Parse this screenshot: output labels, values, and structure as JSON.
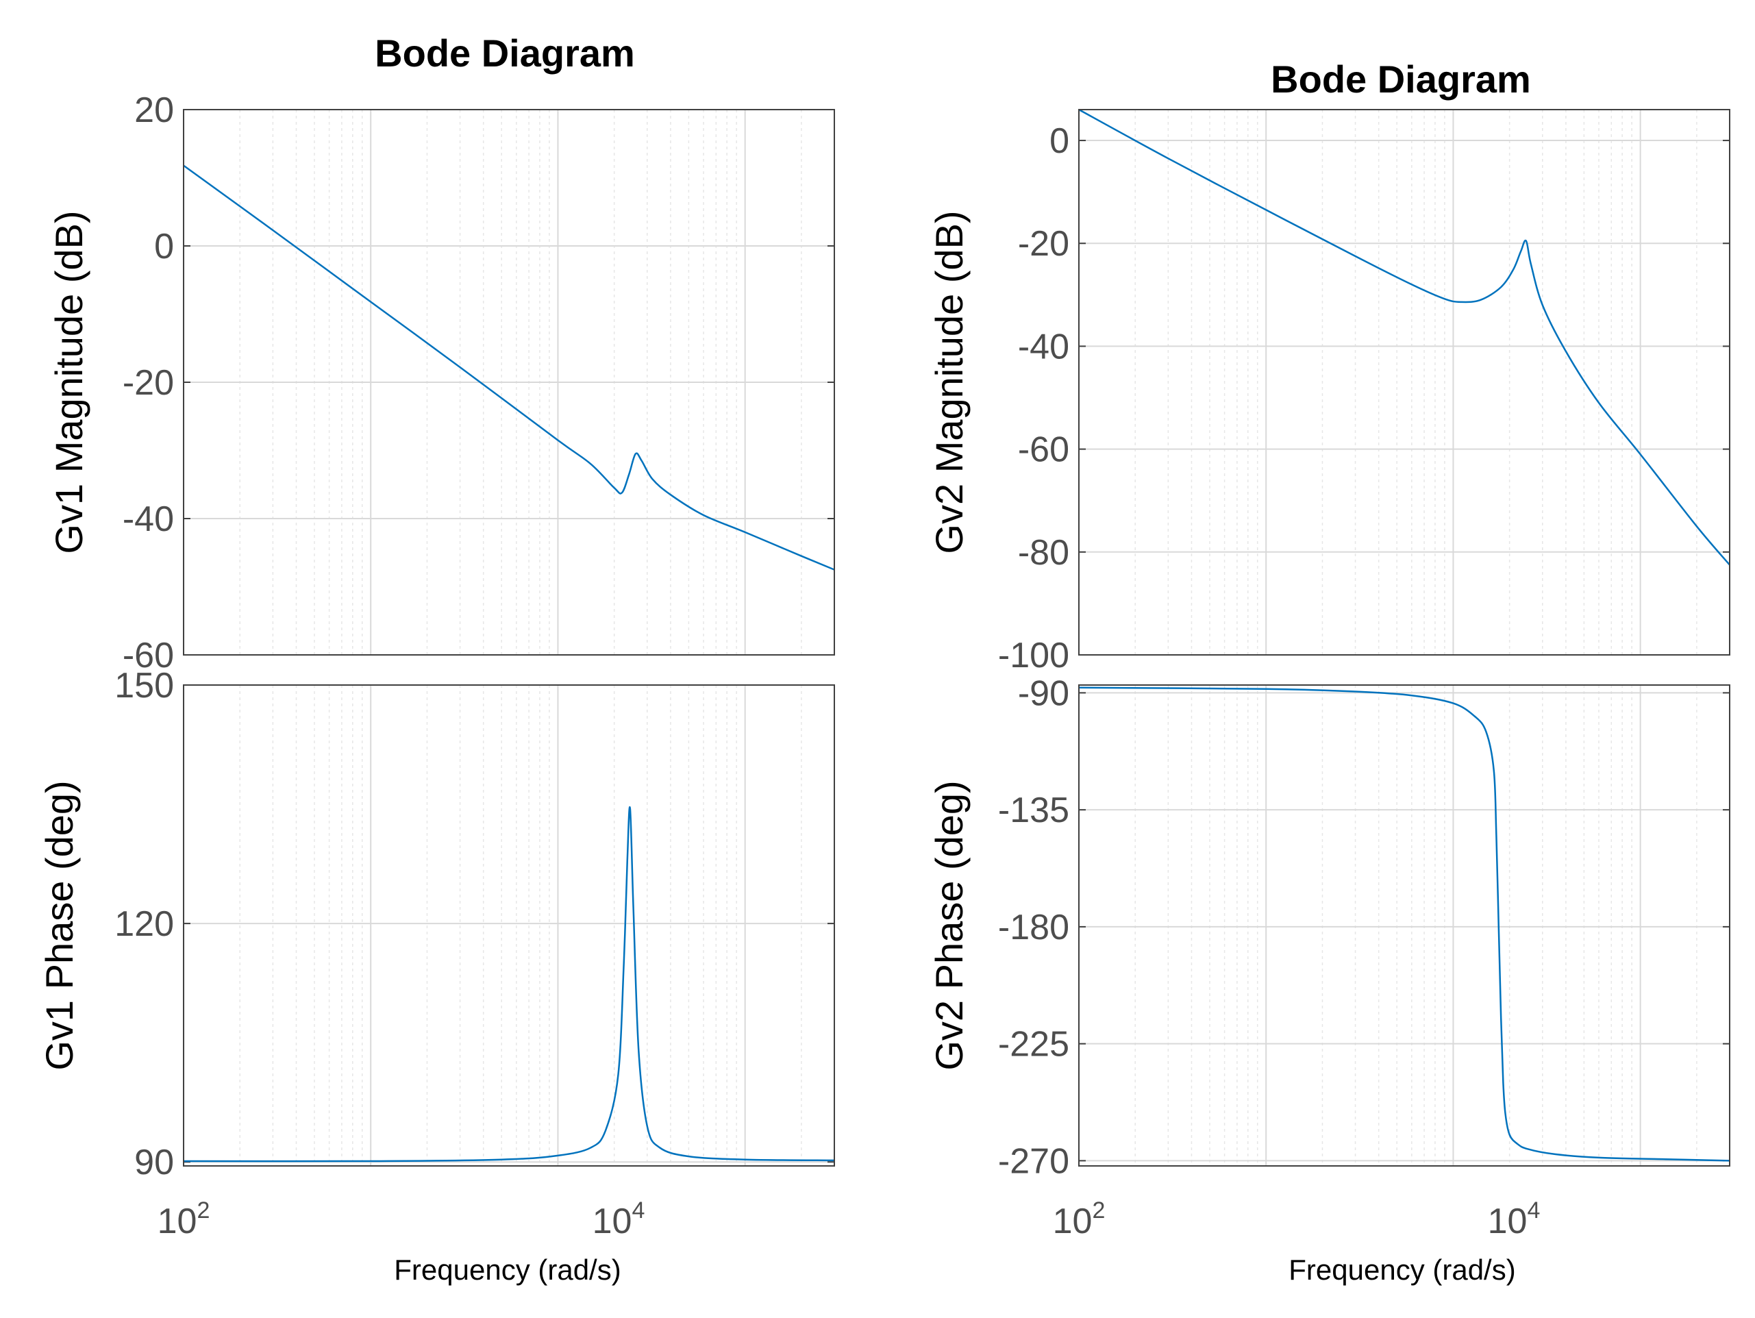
{
  "figure": {
    "xlabel": "Frequency  (rad/s)",
    "xticks": [
      "10",
      "10"
    ],
    "xtick_exponents": [
      "2",
      "4"
    ]
  },
  "chart_data": [
    {
      "type": "line",
      "id": "gv1-mag",
      "title": "Bode Diagram",
      "xlabel": "Frequency  (rad/s)",
      "ylabel": "Gv1 Magnitude (dB)",
      "xscale": "log",
      "xlim": [
        100,
        300000
      ],
      "ylim": [
        -60,
        20
      ],
      "yticks": [
        20,
        0,
        -20,
        -40,
        -60
      ],
      "ytick_labels": [
        "20",
        "0",
        "-20",
        "-40",
        "-60"
      ],
      "grid": true,
      "series": [
        {
          "name": "Gv1",
          "color": "#0072bd",
          "x": [
            100,
            300,
            1000,
            3000,
            10000,
            15000,
            20000,
            22000,
            24000,
            26000,
            28000,
            32000,
            40000,
            60000,
            100000,
            200000,
            300000
          ],
          "y": [
            11.8,
            2.3,
            -8.2,
            -17.8,
            -28.5,
            -32.0,
            -35.5,
            -36.2,
            -33.5,
            -30.5,
            -31.5,
            -34.2,
            -36.5,
            -39.5,
            -42.0,
            -45.5,
            -47.5
          ]
        }
      ]
    },
    {
      "type": "line",
      "id": "gv1-phase",
      "title": "",
      "xlabel": "Frequency  (rad/s)",
      "ylabel": "Gv1 Phase (deg)",
      "xscale": "log",
      "xlim": [
        100,
        300000
      ],
      "ylim": [
        89.5,
        150
      ],
      "yticks": [
        150,
        120,
        90
      ],
      "ytick_labels": [
        "150",
        "120",
        "90"
      ],
      "grid": true,
      "series": [
        {
          "name": "Gv1",
          "color": "#0072bd",
          "x": [
            100,
            1000,
            5000,
            10000,
            15000,
            18000,
            21000,
            22500,
            23500,
            24300,
            25300,
            27000,
            30000,
            35000,
            50000,
            100000,
            300000
          ],
          "y": [
            90.1,
            90.1,
            90.3,
            90.8,
            91.8,
            94.0,
            101.0,
            115.0,
            128.0,
            134.5,
            122.0,
            104.0,
            94.5,
            91.8,
            90.7,
            90.3,
            90.2
          ]
        }
      ]
    },
    {
      "type": "line",
      "id": "gv2-mag",
      "title": "Bode Diagram",
      "xlabel": "Frequency  (rad/s)",
      "ylabel": "Gv2 Magnitude (dB)",
      "xscale": "log",
      "xlim": [
        100,
        300000
      ],
      "ylim": [
        -100,
        6
      ],
      "yticks": [
        0,
        -20,
        -40,
        -60,
        -80,
        -100
      ],
      "ytick_labels": [
        "0",
        "-20",
        "-40",
        "-60",
        "-80",
        "-100"
      ],
      "grid": true,
      "series": [
        {
          "name": "Gv2",
          "color": "#0072bd",
          "x": [
            100,
            300,
            1000,
            3000,
            6000,
            9000,
            11000,
            14000,
            18000,
            21000,
            23000,
            24500,
            26000,
            30000,
            40000,
            60000,
            100000,
            200000,
            300000
          ],
          "y": [
            6.0,
            -3.5,
            -13.5,
            -22.5,
            -28.0,
            -30.8,
            -31.4,
            -31.0,
            -28.5,
            -25.0,
            -21.5,
            -19.5,
            -24.0,
            -32.0,
            -41.0,
            -51.0,
            -61.0,
            -75.0,
            -82.5
          ]
        }
      ]
    },
    {
      "type": "line",
      "id": "gv2-phase",
      "title": "",
      "xlabel": "Frequency  (rad/s)",
      "ylabel": "Gv2 Phase (deg)",
      "xscale": "log",
      "xlim": [
        100,
        300000
      ],
      "ylim": [
        -272,
        -87
      ],
      "yticks": [
        -90,
        -135,
        -180,
        -225,
        -270
      ],
      "ytick_labels": [
        "-90",
        "-135",
        "-180",
        "-225",
        "-270"
      ],
      "grid": true,
      "series": [
        {
          "name": "Gv2",
          "color": "#0072bd",
          "x": [
            100,
            1000,
            3000,
            6000,
            10000,
            13000,
            15000,
            16500,
            17000,
            17500,
            18000,
            18500,
            19000,
            20000,
            22000,
            25000,
            35000,
            60000,
            150000,
            300000
          ],
          "y": [
            -88.0,
            -88.5,
            -89.5,
            -91.0,
            -94.0,
            -99.0,
            -105.0,
            -120.0,
            -145.0,
            -180.0,
            -215.0,
            -240.0,
            -252.0,
            -260.0,
            -263.5,
            -265.5,
            -267.5,
            -268.8,
            -269.5,
            -270.0
          ]
        }
      ]
    }
  ]
}
